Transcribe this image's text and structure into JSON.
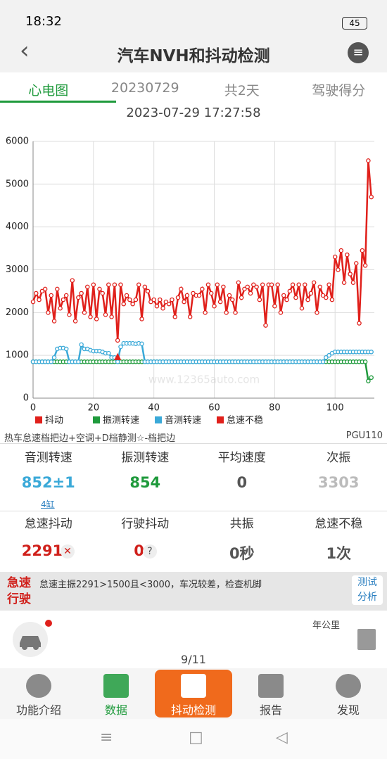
{
  "status_bar": {
    "time": "18:32",
    "battery": "45"
  },
  "header": {
    "title": "汽车NVH和抖动检测"
  },
  "tabs": [
    "心电图",
    "20230729",
    "共2天",
    "驾驶得分"
  ],
  "timestamp": "2023-07-29 17:27:58",
  "chart_data": {
    "type": "line",
    "x": [
      0,
      1,
      2,
      3,
      4,
      5,
      6,
      7,
      8,
      9,
      10,
      11,
      12,
      13,
      14,
      15,
      16,
      17,
      18,
      19,
      20,
      21,
      22,
      23,
      24,
      25,
      26,
      27,
      28,
      29,
      30,
      31,
      32,
      33,
      34,
      35,
      36,
      37,
      38,
      39,
      40,
      41,
      42,
      43,
      44,
      45,
      46,
      47,
      48,
      49,
      50,
      51,
      52,
      53,
      54,
      55,
      56,
      57,
      58,
      59,
      60,
      61,
      62,
      63,
      64,
      65,
      66,
      67,
      68,
      69,
      70,
      71,
      72,
      73,
      74,
      75,
      76,
      77,
      78,
      79,
      80,
      81,
      82,
      83,
      84,
      85,
      86,
      87,
      88,
      89,
      90,
      91,
      92,
      93,
      94,
      95,
      96,
      97,
      98,
      99,
      100,
      101,
      102,
      103,
      104,
      105,
      106,
      107,
      108,
      109,
      110,
      111,
      112
    ],
    "series": [
      {
        "name": "抖动",
        "color": "#e0201b",
        "marker": "circle",
        "values": [
          2250,
          2450,
          2300,
          2500,
          2550,
          2000,
          2400,
          1800,
          2550,
          2100,
          2300,
          2400,
          1950,
          2750,
          1800,
          2350,
          2450,
          2000,
          2600,
          1900,
          2650,
          1850,
          2550,
          2450,
          1950,
          2650,
          1900,
          2650,
          1350,
          2650,
          2200,
          2400,
          2300,
          2200,
          2300,
          2650,
          1850,
          2600,
          2500,
          2250,
          2300,
          2150,
          2300,
          2100,
          2250,
          2200,
          2300,
          1900,
          2350,
          2550,
          2250,
          2400,
          1900,
          2450,
          2400,
          2400,
          2550,
          2000,
          2650,
          2450,
          2150,
          2650,
          2250,
          2600,
          2000,
          2400,
          2300,
          2000,
          2700,
          2350,
          2550,
          2600,
          2450,
          2650,
          2600,
          2300,
          2650,
          1700,
          2650,
          2650,
          2150,
          2650,
          2000,
          2400,
          2300,
          2500,
          2650,
          2350,
          2650,
          2100,
          2650,
          2300,
          2450,
          2700,
          2000,
          2600,
          2400,
          2350,
          2650,
          2300,
          3300,
          3000,
          3450,
          2700,
          3350,
          2900,
          2700,
          3150,
          1750,
          3450,
          3100,
          5550,
          4700
        ]
      },
      {
        "name": "振测转速",
        "color": "#1f9a3c",
        "marker": "circle",
        "values": [
          850,
          850,
          850,
          850,
          850,
          850,
          850,
          850,
          850,
          850,
          850,
          850,
          850,
          850,
          850,
          850,
          850,
          850,
          850,
          850,
          850,
          850,
          850,
          850,
          850,
          850,
          850,
          850,
          850,
          850,
          850,
          850,
          850,
          850,
          850,
          850,
          850,
          850,
          850,
          850,
          850,
          850,
          850,
          850,
          850,
          850,
          850,
          850,
          850,
          850,
          850,
          850,
          850,
          850,
          850,
          850,
          850,
          850,
          850,
          850,
          850,
          850,
          850,
          850,
          850,
          850,
          850,
          850,
          850,
          850,
          850,
          850,
          850,
          850,
          850,
          850,
          850,
          850,
          850,
          850,
          850,
          850,
          850,
          850,
          850,
          850,
          850,
          850,
          850,
          850,
          850,
          850,
          850,
          850,
          850,
          850,
          850,
          850,
          850,
          850,
          850,
          850,
          850,
          850,
          850,
          850,
          850,
          850,
          850,
          850,
          850,
          400,
          480
        ]
      },
      {
        "name": "音测转速",
        "color": "#3aa9d8",
        "marker": "circle",
        "values": [
          850,
          850,
          850,
          850,
          850,
          850,
          850,
          950,
          1150,
          1170,
          1170,
          1150,
          850,
          850,
          850,
          850,
          1250,
          1150,
          1150,
          1120,
          1100,
          1100,
          1100,
          1080,
          1050,
          1050,
          950,
          950,
          850,
          1200,
          1280,
          1280,
          1280,
          1280,
          1270,
          1280,
          1270,
          850,
          850,
          850,
          850,
          850,
          850,
          850,
          850,
          850,
          850,
          850,
          850,
          850,
          850,
          850,
          850,
          850,
          850,
          850,
          850,
          850,
          850,
          850,
          850,
          850,
          850,
          850,
          850,
          850,
          850,
          850,
          850,
          850,
          850,
          850,
          850,
          850,
          850,
          850,
          850,
          850,
          850,
          850,
          850,
          850,
          850,
          850,
          850,
          850,
          850,
          850,
          850,
          850,
          850,
          850,
          850,
          850,
          850,
          850,
          850,
          950,
          1000,
          1050,
          1080,
          1080,
          1080,
          1080,
          1080,
          1080,
          1080,
          1080,
          1080,
          1080,
          1080,
          1080,
          1080
        ]
      },
      {
        "name": "怠速不稳",
        "color": "#e0201b",
        "marker": "triangle",
        "x": [
          28
        ],
        "values": [
          950
        ]
      }
    ],
    "xlim": [
      0,
      113
    ],
    "xticks": [
      0,
      20,
      40,
      60,
      80,
      100
    ],
    "ylim": [
      0,
      6000
    ],
    "yticks": [
      0,
      1000,
      2000,
      3000,
      4000,
      5000,
      6000
    ],
    "grid": true
  },
  "test_info": {
    "condition": "热车怠速档把边+空调+D档静测☆-档把边",
    "code": "PGU110"
  },
  "stats_row1": [
    {
      "label": "音测转速",
      "value": "852±1",
      "note": "4缸"
    },
    {
      "label": "振测转速",
      "value": "854"
    },
    {
      "label": "平均速度",
      "value": "0"
    },
    {
      "label": "次振",
      "value": "3303"
    }
  ],
  "stats_row2": [
    {
      "label": "怠速抖动",
      "value": "2291"
    },
    {
      "label": "行驶抖动",
      "value": "0"
    },
    {
      "label": "共振",
      "value": "0秒"
    },
    {
      "label": "怠速不稳",
      "value": "1次"
    }
  ],
  "banner": {
    "tag": [
      "急速",
      "行驶"
    ],
    "text": "怠速主振2291>1500且<3000，车况较差，检查机脚",
    "button": [
      "测试",
      "分析"
    ]
  },
  "trip": {
    "unit": "年公里",
    "page": "9/11"
  },
  "nav": [
    "功能介绍",
    "数据",
    "抖动检测",
    "报告",
    "发现"
  ]
}
